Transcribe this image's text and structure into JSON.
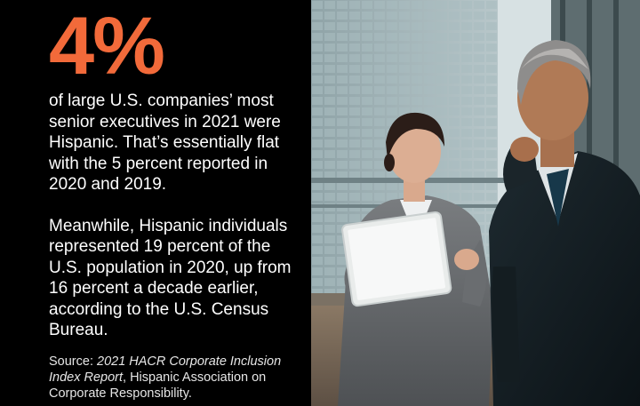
{
  "stat": {
    "value": "4%",
    "color": "#f26a3a"
  },
  "paragraphs": [
    "of large U.S. companies’ most senior executives in 2021 were Hispanic. That’s essentially flat with the 5 percent reported in 2020 and 2019.",
    "Meanwhile, Hispanic individuals represented 19 percent of the U.S. population in 2020, up from 16 percent a decade earlier, according to the U.S. Census Bureau."
  ],
  "source": {
    "prefix": "Source: ",
    "report": "2021 HACR Corporate Inclusion Index Report",
    "suffix": ", Hispanic Association on Corporate Responsibility."
  },
  "photo": {
    "subject": "two-business-people-looking-at-tablet"
  }
}
